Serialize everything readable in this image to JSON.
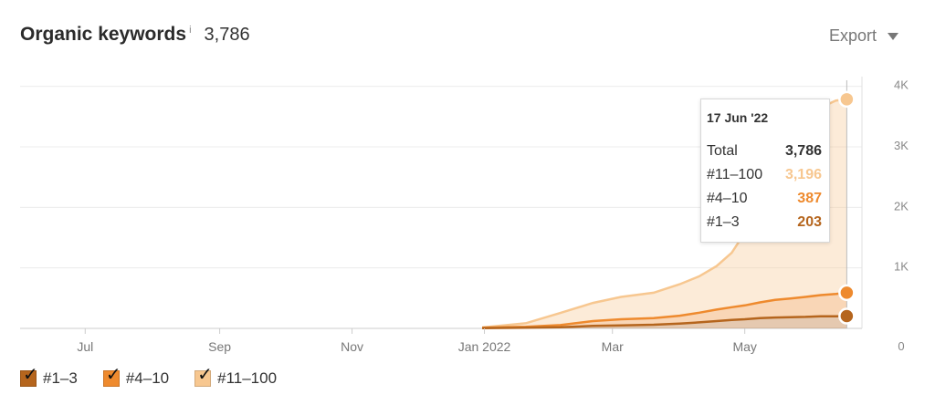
{
  "header": {
    "title": "Organic keywords",
    "info": "i",
    "total": "3,786",
    "export_label": "Export"
  },
  "colors": {
    "top3": "#b5651d",
    "top10": "#ee8a2e",
    "top100": "#f7c790"
  },
  "chart_data": {
    "type": "area",
    "stacked": true,
    "x_ticks": [
      "Jul",
      "Sep",
      "Nov",
      "Jan 2022",
      "Mar",
      "May"
    ],
    "y_ticks": [
      "0",
      "1K",
      "2K",
      "3K",
      "4K"
    ],
    "y_tick_values": [
      0,
      1000,
      2000,
      3000,
      4000
    ],
    "ylim": [
      0,
      4100
    ],
    "xlim": [
      "2021-06-01",
      "2022-06-24"
    ],
    "legend_position": "bottom-left",
    "grid": true,
    "x": [
      "2021-12-31",
      "2022-01-20",
      "2022-02-05",
      "2022-02-20",
      "2022-03-05",
      "2022-03-20",
      "2022-04-01",
      "2022-04-10",
      "2022-04-18",
      "2022-04-25",
      "2022-05-01",
      "2022-05-08",
      "2022-05-15",
      "2022-05-22",
      "2022-05-29",
      "2022-06-05",
      "2022-06-12",
      "2022-06-17"
    ],
    "series": [
      {
        "name": "#1–3",
        "color_key": "top3",
        "values": [
          5,
          10,
          20,
          40,
          50,
          60,
          80,
          100,
          120,
          140,
          150,
          170,
          180,
          185,
          190,
          200,
          200,
          203
        ]
      },
      {
        "name": "#4–10",
        "color_key": "top10",
        "values": [
          5,
          15,
          35,
          80,
          100,
          110,
          130,
          160,
          190,
          210,
          230,
          260,
          290,
          310,
          330,
          350,
          370,
          387
        ]
      },
      {
        "name": "#11–100",
        "color_key": "top100",
        "values": [
          5,
          60,
          200,
          300,
          370,
          420,
          520,
          600,
          720,
          900,
          1200,
          1600,
          2100,
          2600,
          3000,
          3100,
          3196,
          3196
        ]
      }
    ],
    "tooltip": {
      "date": "17 Jun '22",
      "rows": [
        {
          "label": "Total",
          "value": "3,786",
          "color_key": "total"
        },
        {
          "label": "#11–100",
          "value": "3,196",
          "color_key": "top100"
        },
        {
          "label": "#4–10",
          "value": "387",
          "color_key": "top10"
        },
        {
          "label": "#1–3",
          "value": "203",
          "color_key": "top3"
        }
      ]
    }
  },
  "legend": [
    {
      "label": "#1–3",
      "color_key": "top3"
    },
    {
      "label": "#4–10",
      "color_key": "top10"
    },
    {
      "label": "#11–100",
      "color_key": "top100"
    }
  ]
}
